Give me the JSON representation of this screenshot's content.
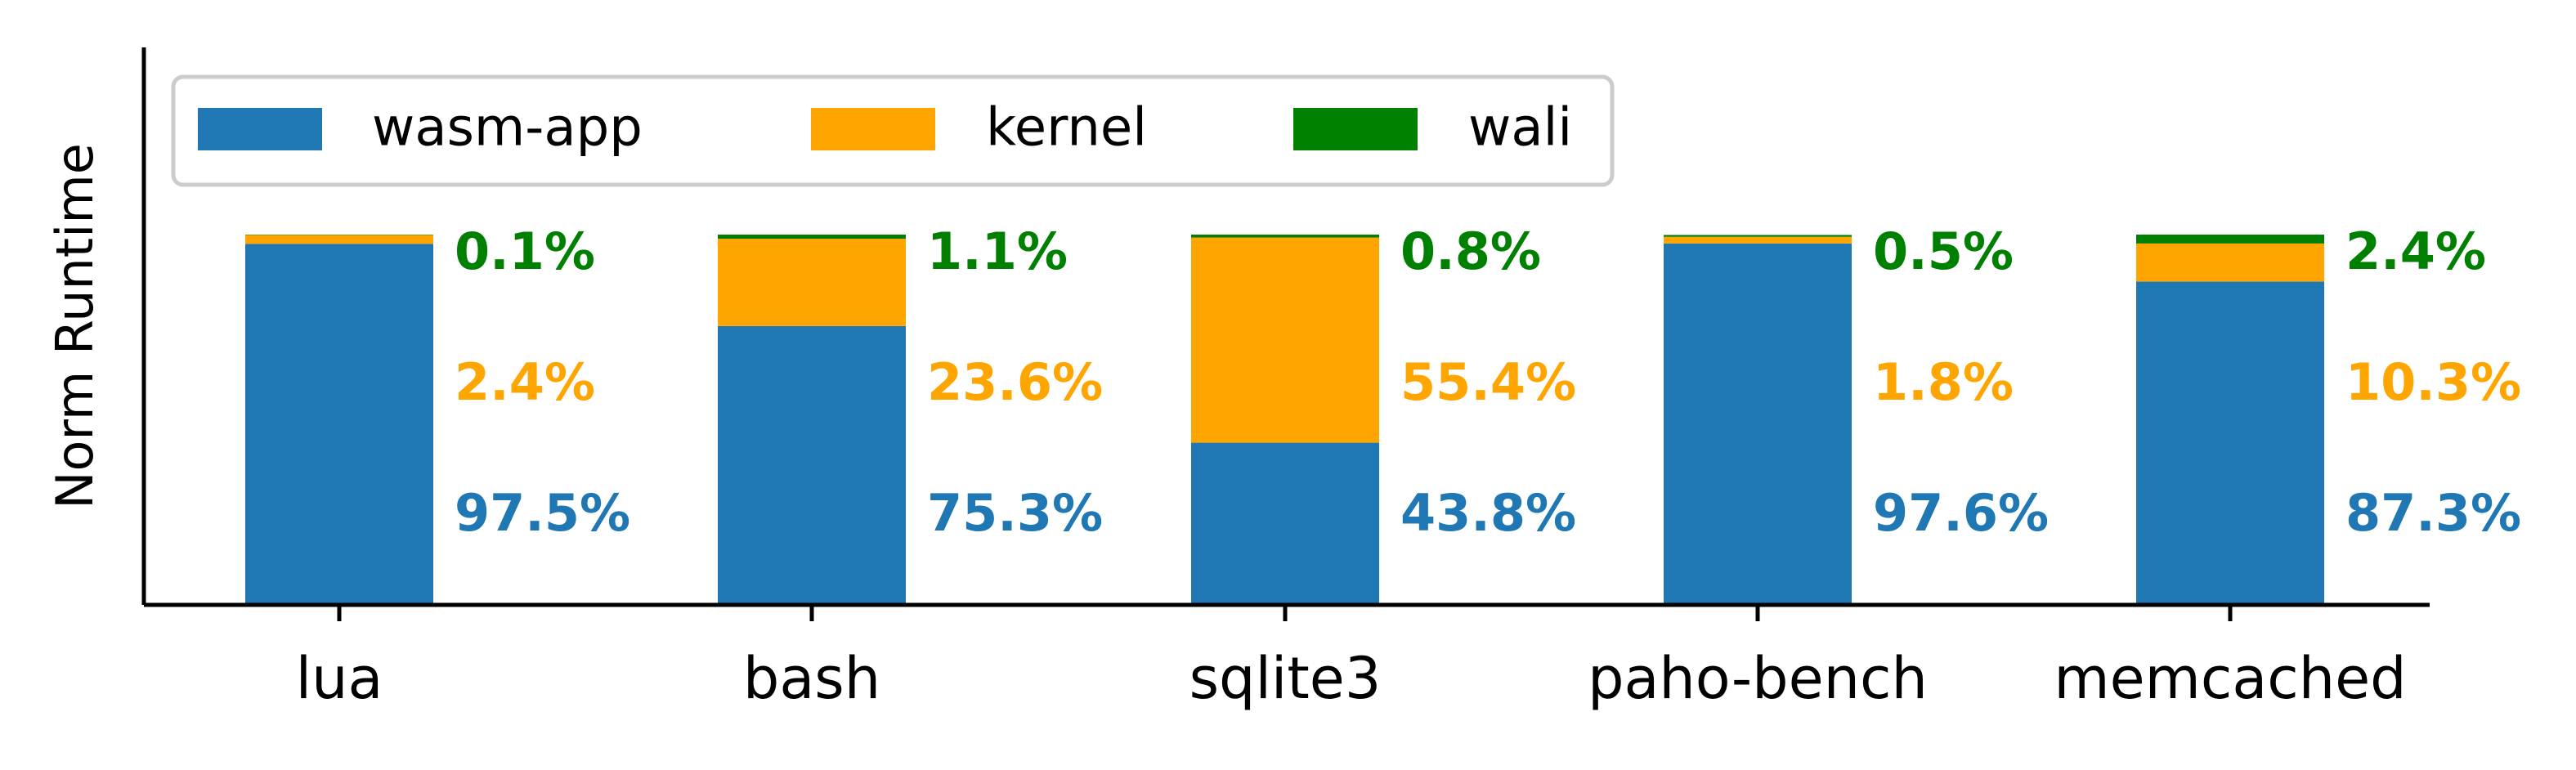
{
  "chart_data": {
    "type": "bar",
    "stacked": true,
    "normalized": true,
    "title": "",
    "xlabel": "",
    "ylabel": "Norm Runtime",
    "ylim": [
      0,
      100
    ],
    "categories": [
      "lua",
      "bash",
      "sqlite3",
      "paho-bench",
      "memcached"
    ],
    "series": [
      {
        "name": "wasm-app",
        "color": "#1f77b4",
        "values": [
          97.5,
          75.3,
          43.8,
          97.6,
          87.3
        ],
        "labels": [
          "97.5%",
          "75.3%",
          "43.8%",
          "97.6%",
          "87.3%"
        ]
      },
      {
        "name": "kernel",
        "color": "#ffa500",
        "values": [
          2.4,
          23.6,
          55.4,
          1.8,
          10.3
        ],
        "labels": [
          "2.4%",
          "23.6%",
          "55.4%",
          "1.8%",
          "10.3%"
        ]
      },
      {
        "name": "wali",
        "color": "#008000",
        "values": [
          0.1,
          1.1,
          0.8,
          0.5,
          2.4
        ],
        "labels": [
          "0.1%",
          "1.1%",
          "0.8%",
          "0.5%",
          "2.4%"
        ]
      }
    ],
    "legend": {
      "position": "top-left",
      "columns": 3
    },
    "grid": false,
    "y_ticks_shown": false
  }
}
